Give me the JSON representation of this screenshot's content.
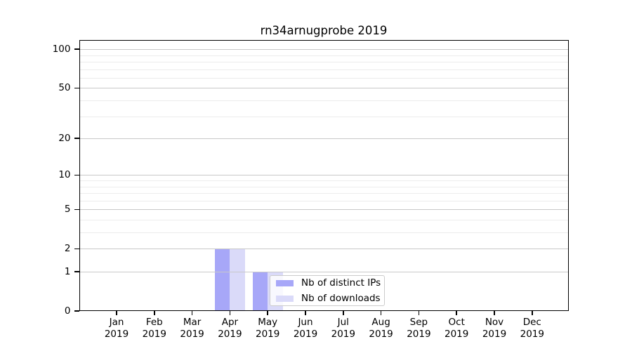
{
  "title": "rn34arnugprobe 2019",
  "chart_data": {
    "type": "bar",
    "title": "rn34arnugprobe 2019",
    "categories": [
      "Jan 2019",
      "Feb 2019",
      "Mar 2019",
      "Apr 2019",
      "May 2019",
      "Jun 2019",
      "Jul 2019",
      "Aug 2019",
      "Sep 2019",
      "Oct 2019",
      "Nov 2019",
      "Dec 2019"
    ],
    "series": [
      {
        "name": "Nb of distinct IPs",
        "color": "#a7a7f8",
        "values": [
          0,
          0,
          0,
          2,
          1,
          0,
          0,
          0,
          0,
          0,
          0,
          0
        ]
      },
      {
        "name": "Nb of downloads",
        "color": "#dadaf9",
        "values": [
          0,
          0,
          0,
          2,
          1,
          0,
          0,
          0,
          0,
          0,
          0,
          0
        ]
      }
    ],
    "xlabel": "",
    "ylabel": "",
    "yscale": "log1p",
    "ylim": [
      0,
      118
    ],
    "yticks": [
      0,
      1,
      2,
      5,
      10,
      20,
      50,
      100
    ],
    "yticks_minor": [
      3,
      4,
      6,
      7,
      8,
      9,
      30,
      40,
      60,
      70,
      80,
      90
    ],
    "grid": true,
    "grid_on_top_of_bars": true,
    "legend_position": "lower right inside"
  },
  "colors": {
    "background": "#ffffff",
    "axis": "#000000",
    "text": "#000000",
    "grid_major": "#c8c8c8",
    "grid_minor": "#ececec",
    "legend_border": "#cccccc"
  }
}
